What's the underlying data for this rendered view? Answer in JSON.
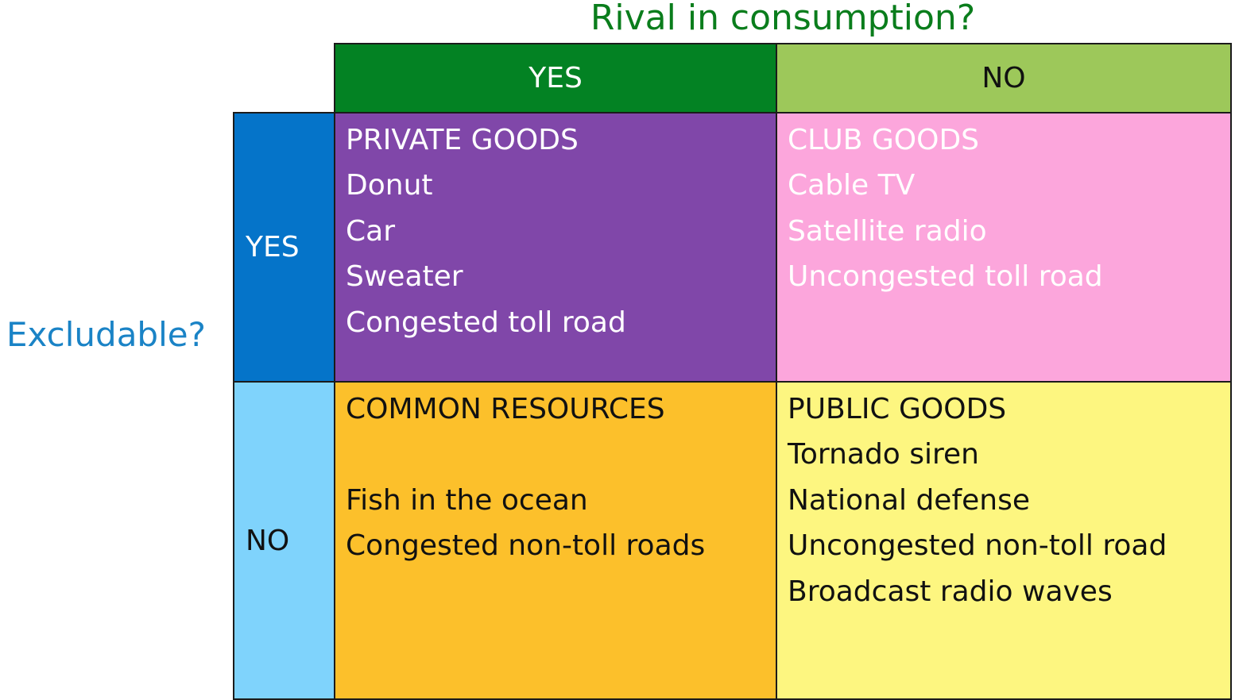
{
  "axes": {
    "column_title": "Rival in consumption?",
    "row_title": "Excludable?"
  },
  "columns": {
    "yes": "YES",
    "no": "NO"
  },
  "rows": {
    "yes": "YES",
    "no": "NO"
  },
  "quadrants": {
    "private_goods": {
      "title": "PRIVATE GOODS",
      "items": [
        "Donut",
        "Car",
        "Sweater",
        "Congested toll road"
      ]
    },
    "club_goods": {
      "title": "CLUB GOODS",
      "items": [
        "Cable TV",
        "Satellite radio",
        "Uncongested toll road"
      ]
    },
    "common_resources": {
      "title": "COMMON RESOURCES",
      "items": [
        "Fish in the ocean",
        "Congested non-toll roads"
      ]
    },
    "public_goods": {
      "title": "PUBLIC GOODS",
      "items": [
        "Tornado siren",
        "National defense",
        "Uncongested non-toll road",
        "Broadcast radio waves"
      ]
    }
  },
  "colors": {
    "column_title": "#0a7d1c",
    "row_title": "#1a83c6",
    "column_yes": "#038223",
    "column_no": "#9dc85a",
    "row_yes": "#0574c9",
    "row_no": "#7fd3fc",
    "private_goods": "#8047a9",
    "club_goods": "#fca6dc",
    "common_resources": "#fcc02b",
    "public_goods": "#fdf680",
    "border": "#1b1b1b"
  }
}
